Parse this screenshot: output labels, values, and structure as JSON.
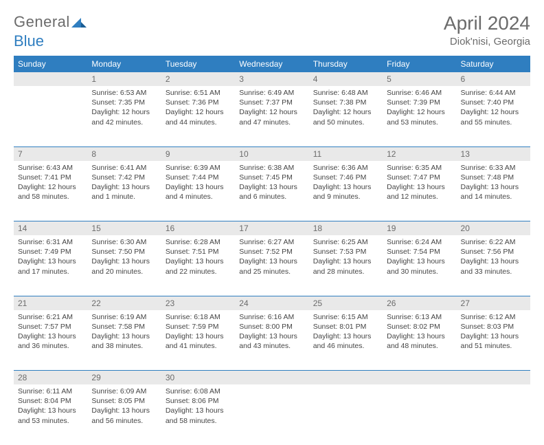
{
  "logo": {
    "text1": "General",
    "text2": "Blue",
    "color1": "#6b6b6b",
    "color2": "#2f7ec0"
  },
  "title": "April 2024",
  "location": "Diok'nisi, Georgia",
  "colors": {
    "header_bg": "#2f7ec0",
    "header_text": "#ffffff",
    "daynum_bg": "#e9e9e9",
    "daynum_text": "#6b6b6b",
    "cell_text": "#444444",
    "divider": "#2f7ec0"
  },
  "weekdays": [
    "Sunday",
    "Monday",
    "Tuesday",
    "Wednesday",
    "Thursday",
    "Friday",
    "Saturday"
  ],
  "weeks": [
    [
      {
        "day": "",
        "lines": []
      },
      {
        "day": "1",
        "lines": [
          "Sunrise: 6:53 AM",
          "Sunset: 7:35 PM",
          "Daylight: 12 hours and 42 minutes."
        ]
      },
      {
        "day": "2",
        "lines": [
          "Sunrise: 6:51 AM",
          "Sunset: 7:36 PM",
          "Daylight: 12 hours and 44 minutes."
        ]
      },
      {
        "day": "3",
        "lines": [
          "Sunrise: 6:49 AM",
          "Sunset: 7:37 PM",
          "Daylight: 12 hours and 47 minutes."
        ]
      },
      {
        "day": "4",
        "lines": [
          "Sunrise: 6:48 AM",
          "Sunset: 7:38 PM",
          "Daylight: 12 hours and 50 minutes."
        ]
      },
      {
        "day": "5",
        "lines": [
          "Sunrise: 6:46 AM",
          "Sunset: 7:39 PM",
          "Daylight: 12 hours and 53 minutes."
        ]
      },
      {
        "day": "6",
        "lines": [
          "Sunrise: 6:44 AM",
          "Sunset: 7:40 PM",
          "Daylight: 12 hours and 55 minutes."
        ]
      }
    ],
    [
      {
        "day": "7",
        "lines": [
          "Sunrise: 6:43 AM",
          "Sunset: 7:41 PM",
          "Daylight: 12 hours and 58 minutes."
        ]
      },
      {
        "day": "8",
        "lines": [
          "Sunrise: 6:41 AM",
          "Sunset: 7:42 PM",
          "Daylight: 13 hours and 1 minute."
        ]
      },
      {
        "day": "9",
        "lines": [
          "Sunrise: 6:39 AM",
          "Sunset: 7:44 PM",
          "Daylight: 13 hours and 4 minutes."
        ]
      },
      {
        "day": "10",
        "lines": [
          "Sunrise: 6:38 AM",
          "Sunset: 7:45 PM",
          "Daylight: 13 hours and 6 minutes."
        ]
      },
      {
        "day": "11",
        "lines": [
          "Sunrise: 6:36 AM",
          "Sunset: 7:46 PM",
          "Daylight: 13 hours and 9 minutes."
        ]
      },
      {
        "day": "12",
        "lines": [
          "Sunrise: 6:35 AM",
          "Sunset: 7:47 PM",
          "Daylight: 13 hours and 12 minutes."
        ]
      },
      {
        "day": "13",
        "lines": [
          "Sunrise: 6:33 AM",
          "Sunset: 7:48 PM",
          "Daylight: 13 hours and 14 minutes."
        ]
      }
    ],
    [
      {
        "day": "14",
        "lines": [
          "Sunrise: 6:31 AM",
          "Sunset: 7:49 PM",
          "Daylight: 13 hours and 17 minutes."
        ]
      },
      {
        "day": "15",
        "lines": [
          "Sunrise: 6:30 AM",
          "Sunset: 7:50 PM",
          "Daylight: 13 hours and 20 minutes."
        ]
      },
      {
        "day": "16",
        "lines": [
          "Sunrise: 6:28 AM",
          "Sunset: 7:51 PM",
          "Daylight: 13 hours and 22 minutes."
        ]
      },
      {
        "day": "17",
        "lines": [
          "Sunrise: 6:27 AM",
          "Sunset: 7:52 PM",
          "Daylight: 13 hours and 25 minutes."
        ]
      },
      {
        "day": "18",
        "lines": [
          "Sunrise: 6:25 AM",
          "Sunset: 7:53 PM",
          "Daylight: 13 hours and 28 minutes."
        ]
      },
      {
        "day": "19",
        "lines": [
          "Sunrise: 6:24 AM",
          "Sunset: 7:54 PM",
          "Daylight: 13 hours and 30 minutes."
        ]
      },
      {
        "day": "20",
        "lines": [
          "Sunrise: 6:22 AM",
          "Sunset: 7:56 PM",
          "Daylight: 13 hours and 33 minutes."
        ]
      }
    ],
    [
      {
        "day": "21",
        "lines": [
          "Sunrise: 6:21 AM",
          "Sunset: 7:57 PM",
          "Daylight: 13 hours and 36 minutes."
        ]
      },
      {
        "day": "22",
        "lines": [
          "Sunrise: 6:19 AM",
          "Sunset: 7:58 PM",
          "Daylight: 13 hours and 38 minutes."
        ]
      },
      {
        "day": "23",
        "lines": [
          "Sunrise: 6:18 AM",
          "Sunset: 7:59 PM",
          "Daylight: 13 hours and 41 minutes."
        ]
      },
      {
        "day": "24",
        "lines": [
          "Sunrise: 6:16 AM",
          "Sunset: 8:00 PM",
          "Daylight: 13 hours and 43 minutes."
        ]
      },
      {
        "day": "25",
        "lines": [
          "Sunrise: 6:15 AM",
          "Sunset: 8:01 PM",
          "Daylight: 13 hours and 46 minutes."
        ]
      },
      {
        "day": "26",
        "lines": [
          "Sunrise: 6:13 AM",
          "Sunset: 8:02 PM",
          "Daylight: 13 hours and 48 minutes."
        ]
      },
      {
        "day": "27",
        "lines": [
          "Sunrise: 6:12 AM",
          "Sunset: 8:03 PM",
          "Daylight: 13 hours and 51 minutes."
        ]
      }
    ],
    [
      {
        "day": "28",
        "lines": [
          "Sunrise: 6:11 AM",
          "Sunset: 8:04 PM",
          "Daylight: 13 hours and 53 minutes."
        ]
      },
      {
        "day": "29",
        "lines": [
          "Sunrise: 6:09 AM",
          "Sunset: 8:05 PM",
          "Daylight: 13 hours and 56 minutes."
        ]
      },
      {
        "day": "30",
        "lines": [
          "Sunrise: 6:08 AM",
          "Sunset: 8:06 PM",
          "Daylight: 13 hours and 58 minutes."
        ]
      },
      {
        "day": "",
        "lines": []
      },
      {
        "day": "",
        "lines": []
      },
      {
        "day": "",
        "lines": []
      },
      {
        "day": "",
        "lines": []
      }
    ]
  ]
}
